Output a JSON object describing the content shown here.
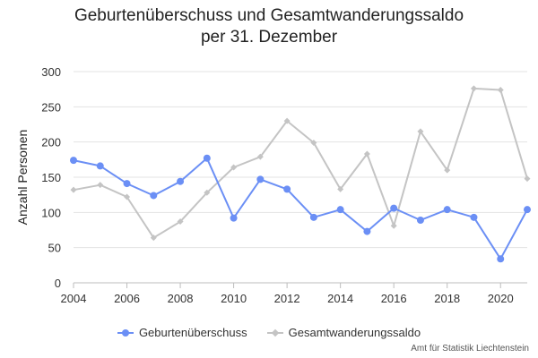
{
  "chart_data": {
    "type": "line",
    "title_lines": [
      "Geburtenüberschuss und Gesamtwanderungssaldo",
      "per 31. Dezember"
    ],
    "xlabel": "",
    "ylabel": "Anzahl Personen",
    "xlim": [
      2004,
      2021
    ],
    "ylim": [
      0,
      300
    ],
    "xticks": [
      "2004",
      "2006",
      "2008",
      "2010",
      "2012",
      "2014",
      "2016",
      "2018",
      "2020"
    ],
    "yticks": [
      "0",
      "50",
      "100",
      "150",
      "200",
      "250",
      "300"
    ],
    "grid": true,
    "legend_position": "bottom",
    "x": [
      2004,
      2005,
      2006,
      2007,
      2008,
      2009,
      2010,
      2011,
      2012,
      2013,
      2014,
      2015,
      2016,
      2017,
      2018,
      2019,
      2020,
      2021
    ],
    "series": [
      {
        "name": "Geburtenüberschuss",
        "color": "#6b8ff5",
        "marker": "circle",
        "values": [
          174,
          166,
          141,
          124,
          144,
          177,
          92,
          147,
          133,
          93,
          104,
          73,
          106,
          89,
          104,
          93,
          34,
          104
        ]
      },
      {
        "name": "Gesamtwanderungssaldo",
        "color": "#c4c4c4",
        "marker": "diamond",
        "values": [
          132,
          139,
          122,
          64,
          87,
          128,
          164,
          179,
          230,
          199,
          133,
          183,
          81,
          215,
          160,
          276,
          274,
          148
        ]
      }
    ],
    "credits": "Amt für Statistik Liechtenstein"
  }
}
